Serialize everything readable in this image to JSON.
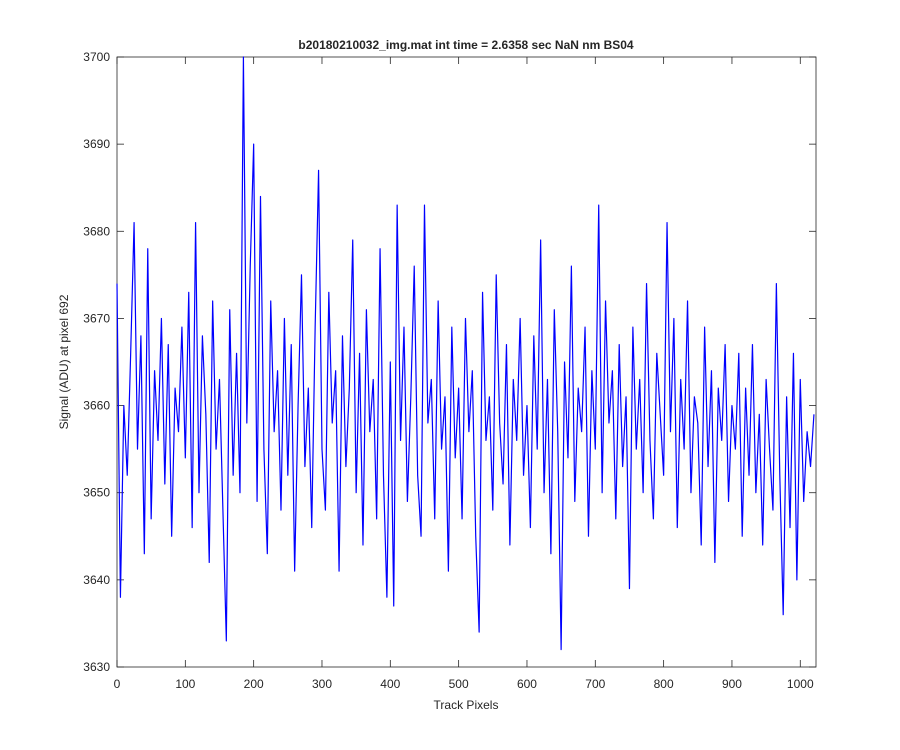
{
  "chart_data": {
    "type": "line",
    "title": "b20180210032_img.mat int time = 2.6358 sec  NaN nm BS04",
    "x_label": "Track Pixels",
    "y_label": "Signal (ADU) at pixel 692",
    "xlim": [
      0,
      1023
    ],
    "ylim": [
      3630,
      3700
    ],
    "xticks": [
      0,
      100,
      200,
      300,
      400,
      500,
      600,
      700,
      800,
      900,
      1000
    ],
    "yticks": [
      3630,
      3640,
      3650,
      3660,
      3670,
      3680,
      3690,
      3700
    ],
    "grid": false,
    "x": [
      0,
      5,
      10,
      15,
      20,
      25,
      30,
      35,
      40,
      45,
      50,
      55,
      60,
      65,
      70,
      75,
      80,
      85,
      90,
      95,
      100,
      105,
      110,
      115,
      120,
      125,
      130,
      135,
      140,
      145,
      150,
      155,
      160,
      165,
      170,
      175,
      180,
      185,
      190,
      195,
      200,
      205,
      210,
      215,
      220,
      225,
      230,
      235,
      240,
      245,
      250,
      255,
      260,
      265,
      270,
      275,
      280,
      285,
      290,
      295,
      300,
      305,
      310,
      315,
      320,
      325,
      330,
      335,
      340,
      345,
      350,
      355,
      360,
      365,
      370,
      375,
      380,
      385,
      390,
      395,
      400,
      405,
      410,
      415,
      420,
      425,
      430,
      435,
      440,
      445,
      450,
      455,
      460,
      465,
      470,
      475,
      480,
      485,
      490,
      495,
      500,
      505,
      510,
      515,
      520,
      525,
      530,
      535,
      540,
      545,
      550,
      555,
      560,
      565,
      570,
      575,
      580,
      585,
      590,
      595,
      600,
      605,
      610,
      615,
      620,
      625,
      630,
      635,
      640,
      645,
      650,
      655,
      660,
      665,
      670,
      675,
      680,
      685,
      690,
      695,
      700,
      705,
      710,
      715,
      720,
      725,
      730,
      735,
      740,
      745,
      750,
      755,
      760,
      765,
      770,
      775,
      780,
      785,
      790,
      795,
      800,
      805,
      810,
      815,
      820,
      825,
      830,
      835,
      840,
      845,
      850,
      855,
      860,
      865,
      870,
      875,
      880,
      885,
      890,
      895,
      900,
      905,
      910,
      915,
      920,
      925,
      930,
      935,
      940,
      945,
      950,
      955,
      960,
      965,
      970,
      975,
      980,
      985,
      990,
      995,
      1000,
      1005,
      1010,
      1015,
      1020
    ],
    "series": [
      {
        "name": "signal",
        "color": "#0000ff",
        "values": [
          3674,
          3638,
          3660,
          3652,
          3666,
          3681,
          3655,
          3668,
          3643,
          3678,
          3647,
          3664,
          3656,
          3670,
          3651,
          3667,
          3645,
          3662,
          3657,
          3669,
          3654,
          3673,
          3646,
          3681,
          3650,
          3668,
          3659,
          3642,
          3672,
          3655,
          3663,
          3648,
          3633,
          3671,
          3652,
          3666,
          3650,
          3700,
          3658,
          3676,
          3690,
          3649,
          3684,
          3655,
          3643,
          3672,
          3657,
          3664,
          3648,
          3670,
          3652,
          3667,
          3641,
          3660,
          3675,
          3653,
          3662,
          3646,
          3669,
          3687,
          3655,
          3648,
          3673,
          3658,
          3664,
          3641,
          3668,
          3653,
          3662,
          3679,
          3650,
          3666,
          3644,
          3671,
          3657,
          3663,
          3647,
          3678,
          3652,
          3638,
          3665,
          3637,
          3683,
          3656,
          3669,
          3649,
          3661,
          3676,
          3652,
          3645,
          3683,
          3658,
          3663,
          3647,
          3672,
          3655,
          3661,
          3641,
          3669,
          3654,
          3662,
          3647,
          3670,
          3657,
          3664,
          3645,
          3634,
          3673,
          3656,
          3661,
          3648,
          3675,
          3658,
          3651,
          3667,
          3644,
          3663,
          3656,
          3670,
          3652,
          3660,
          3646,
          3668,
          3655,
          3679,
          3650,
          3663,
          3643,
          3671,
          3657,
          3632,
          3665,
          3654,
          3676,
          3649,
          3662,
          3657,
          3669,
          3645,
          3664,
          3655,
          3683,
          3650,
          3672,
          3658,
          3664,
          3647,
          3667,
          3653,
          3661,
          3639,
          3669,
          3655,
          3663,
          3650,
          3674,
          3656,
          3647,
          3666,
          3659,
          3652,
          3681,
          3657,
          3670,
          3646,
          3663,
          3655,
          3672,
          3650,
          3661,
          3658,
          3644,
          3669,
          3653,
          3664,
          3642,
          3662,
          3656,
          3667,
          3649,
          3660,
          3655,
          3666,
          3645,
          3662,
          3652,
          3667,
          3650,
          3659,
          3644,
          3663,
          3655,
          3648,
          3674,
          3652,
          3636,
          3661,
          3646,
          3666,
          3640,
          3663,
          3649,
          3657,
          3653,
          3659
        ]
      }
    ]
  }
}
